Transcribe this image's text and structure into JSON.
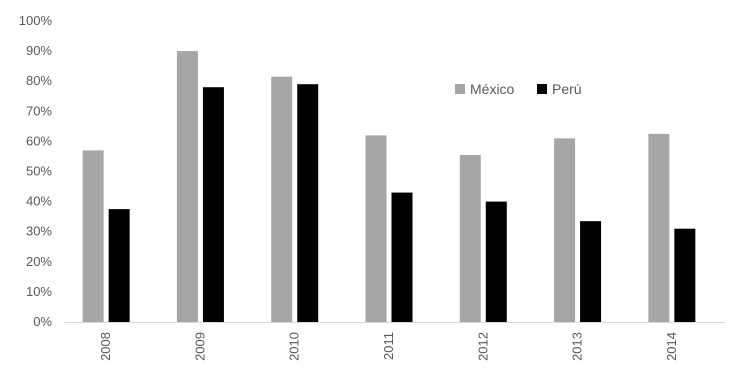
{
  "chart_data": {
    "type": "bar",
    "title": "",
    "xlabel": "",
    "ylabel": "",
    "categories": [
      "2008",
      "2009",
      "2010",
      "2011",
      "2012",
      "2013",
      "2014"
    ],
    "series": [
      {
        "name": "México",
        "color": "#a6a6a6",
        "values": [
          57,
          90,
          81.5,
          62,
          55.5,
          61,
          62.5
        ]
      },
      {
        "name": "Perú",
        "color": "#000000",
        "values": [
          37.5,
          78,
          79,
          43,
          40,
          33.5,
          31
        ]
      }
    ],
    "ylim": [
      0,
      100
    ],
    "yticks": [
      0,
      10,
      20,
      30,
      40,
      50,
      60,
      70,
      80,
      90,
      100
    ],
    "ytick_labels": [
      "0%",
      "10%",
      "20%",
      "30%",
      "40%",
      "50%",
      "60%",
      "70%",
      "80%",
      "90%",
      "100%"
    ],
    "grid": false,
    "legend_position": "top-right"
  }
}
